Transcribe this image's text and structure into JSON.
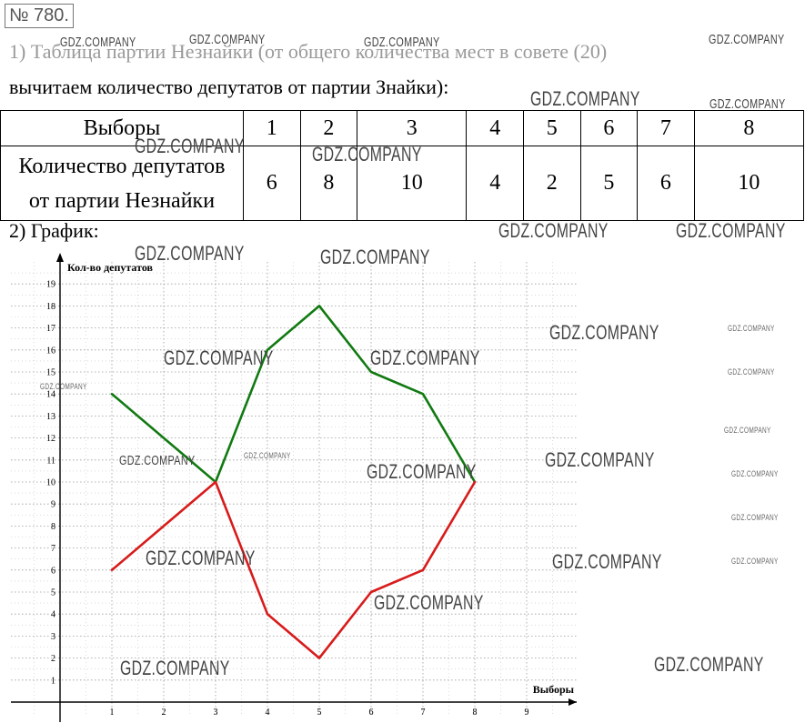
{
  "badge": "№ 780.",
  "text": {
    "line1": "1) Таблица партии Незнайки (от общего количества мест в совете (20)",
    "line2": "вычитаем количество депутатов от партии Знайки):",
    "graph_label": "2) График:"
  },
  "table": {
    "row1_header": "Выборы",
    "row2_header_a": "Количество депутатов",
    "row2_header_b": "от партии Незнайки",
    "elections": [
      "1",
      "2",
      "3",
      "4",
      "5",
      "6",
      "7",
      "8"
    ],
    "deputies": [
      "6",
      "8",
      "10",
      "4",
      "2",
      "5",
      "6",
      "10"
    ]
  },
  "watermark": "GDZ.COMPANY",
  "chart_data": {
    "type": "line",
    "ylabel": "Кол-во депутатов",
    "xlabel": "Выборы",
    "xlim": [
      0,
      9
    ],
    "ylim": [
      0,
      19
    ],
    "x_ticks": [
      1,
      2,
      3,
      4,
      5,
      6,
      7,
      8,
      9
    ],
    "y_ticks": [
      1,
      2,
      3,
      4,
      5,
      6,
      7,
      8,
      9,
      10,
      11,
      12,
      13,
      14,
      15,
      16,
      17,
      18,
      19
    ],
    "grid": true,
    "x": [
      1,
      2,
      3,
      4,
      5,
      6,
      7,
      8
    ],
    "series": [
      {
        "color": "#117a11",
        "values": [
          14,
          12,
          10,
          16,
          18,
          15,
          14,
          10
        ]
      },
      {
        "color": "#d81b1b",
        "values": [
          6,
          8,
          10,
          4,
          2,
          5,
          6,
          10
        ]
      }
    ]
  }
}
